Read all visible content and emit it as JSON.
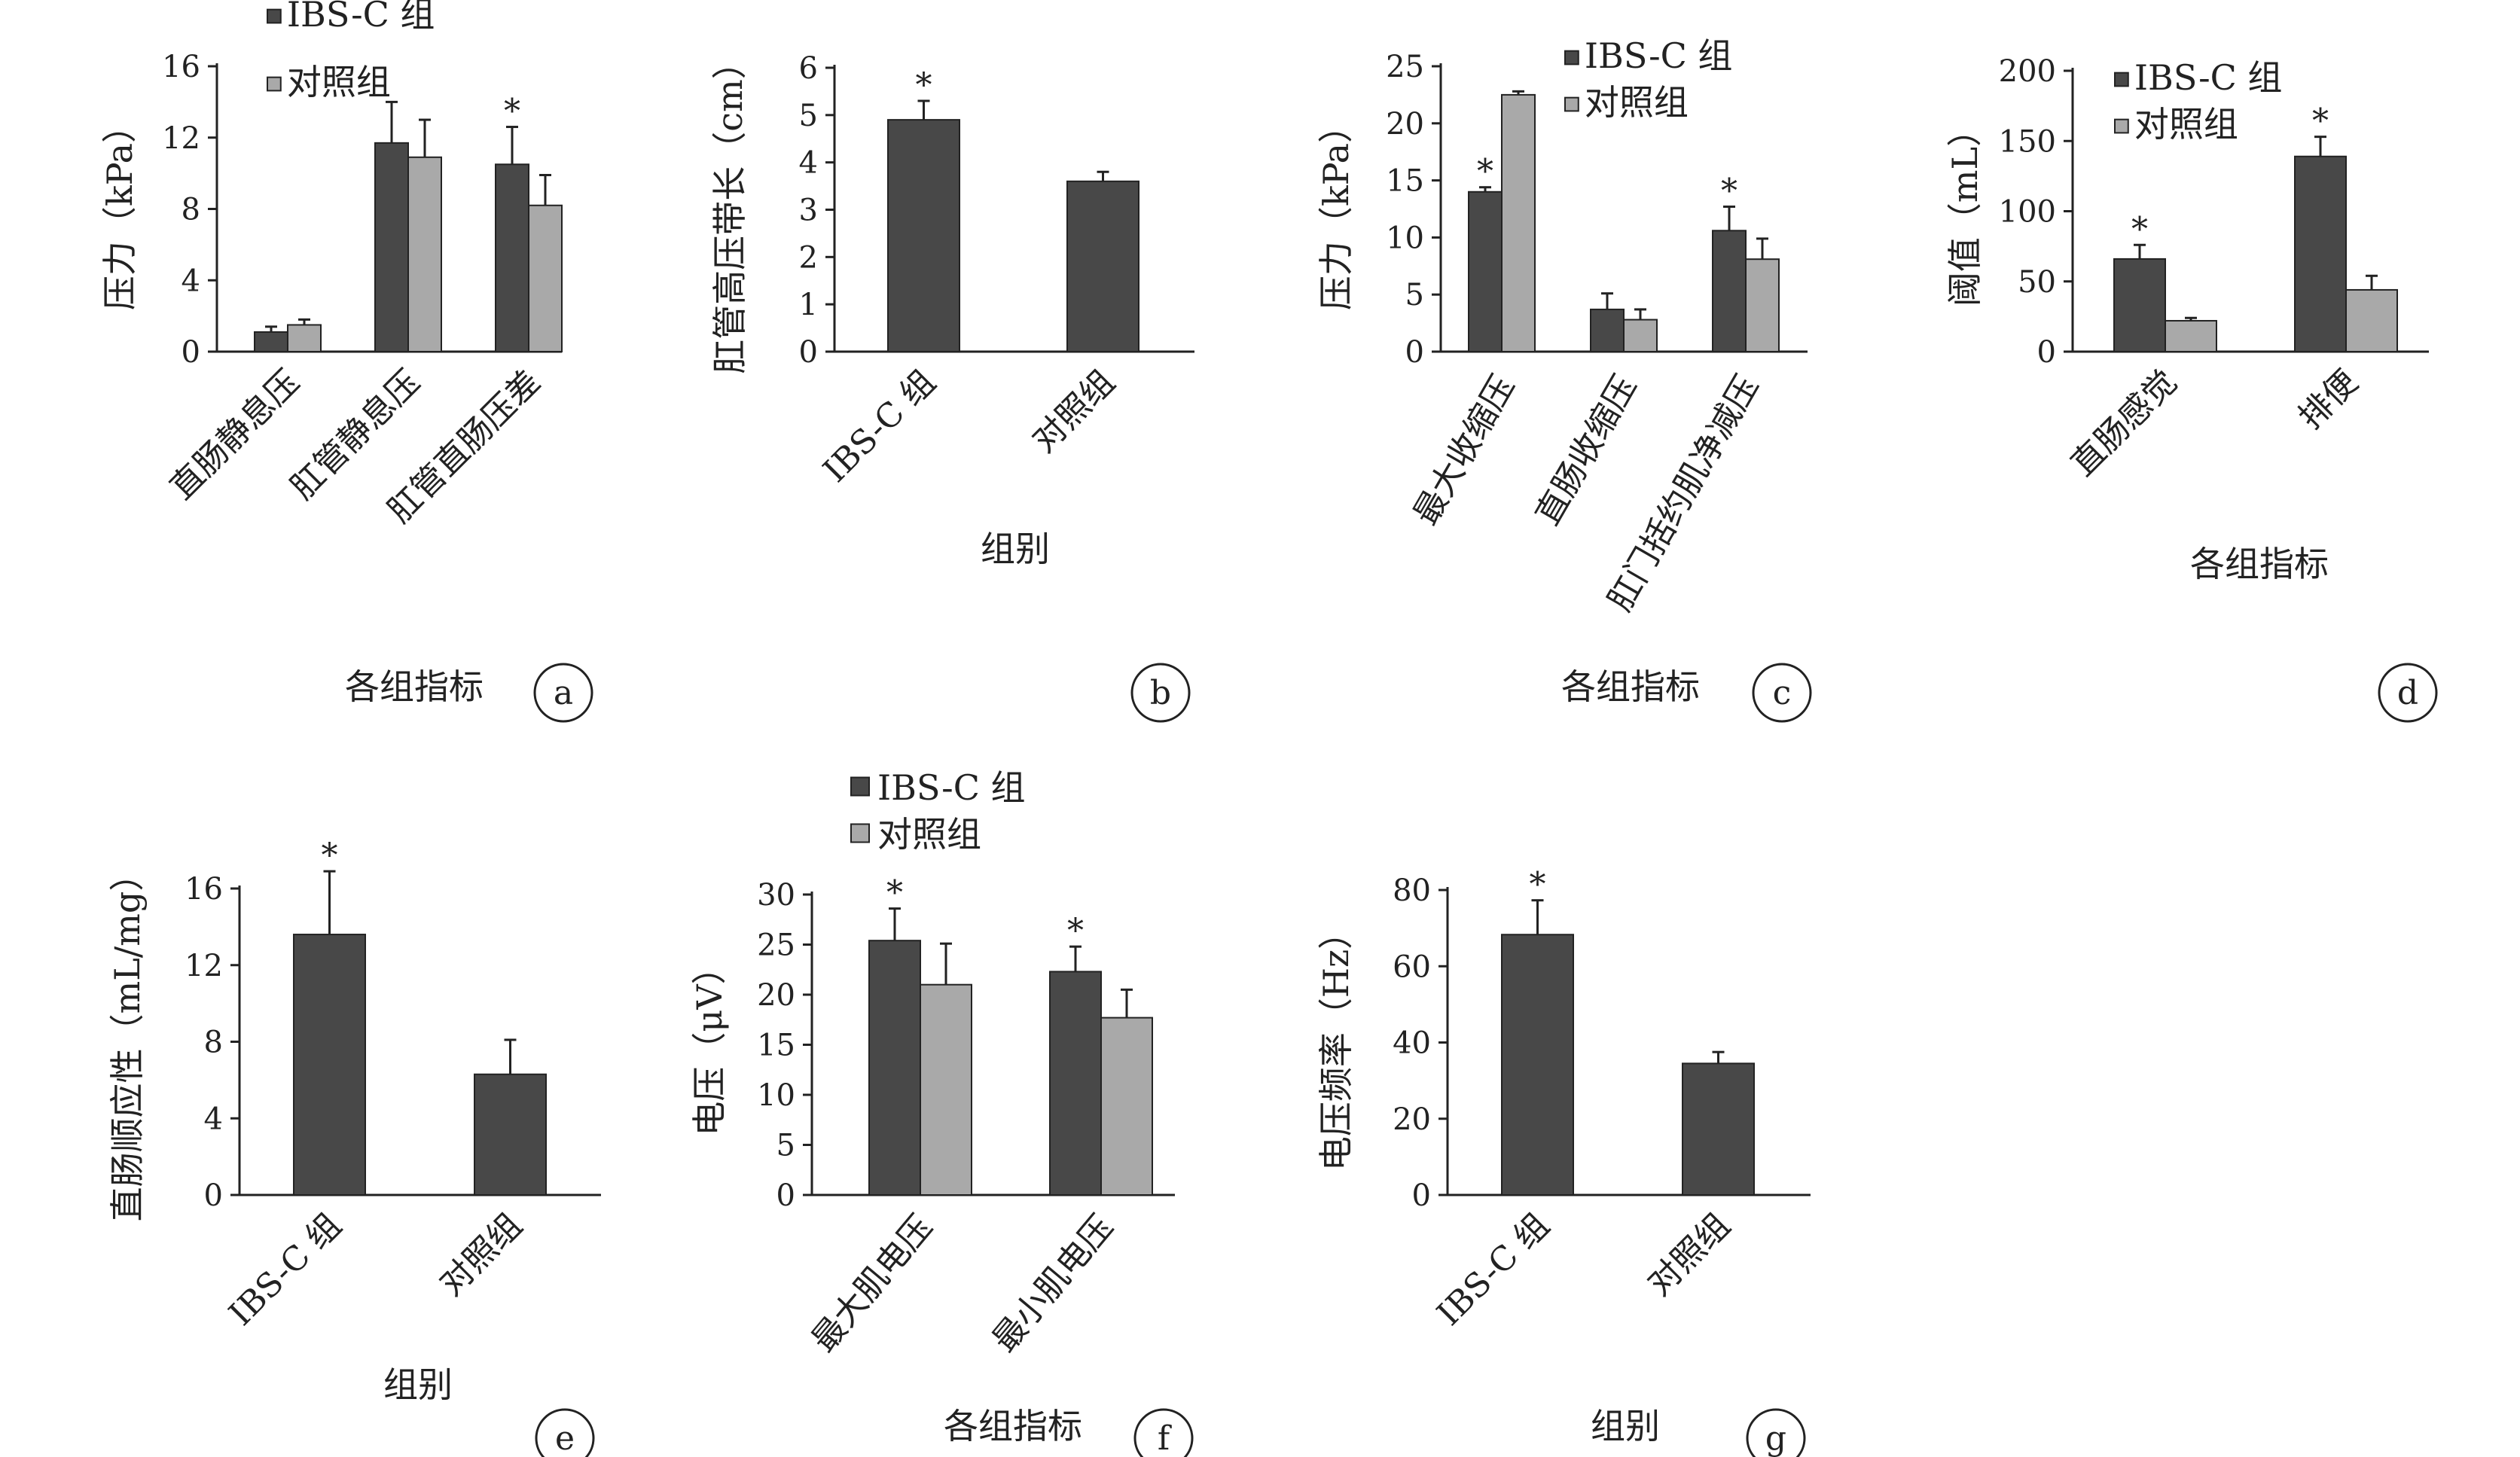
{
  "colors": {
    "ibs": "#484848",
    "control": "#a9a9a9",
    "axis": "#222222"
  },
  "legend": {
    "ibs": "IBS-C 组",
    "control": "对照组"
  },
  "chart_data": [
    {
      "id": "a",
      "type": "bar",
      "panel_label": "a",
      "ylabel": "压力（kPa）",
      "xlabel": "各组指标",
      "ylim": [
        0,
        16
      ],
      "yticks": [
        0,
        4,
        8,
        12,
        16
      ],
      "categories": [
        "直肠静息压",
        "肛管静息压",
        "肛管直肠压差"
      ],
      "series": [
        {
          "name": "IBS-C 组",
          "values": [
            1.1,
            11.7,
            10.5
          ],
          "errors": [
            0.3,
            2.3,
            2.1
          ],
          "significant": [
            false,
            false,
            true
          ]
        },
        {
          "name": "对照组",
          "values": [
            1.5,
            10.9,
            8.2
          ],
          "errors": [
            0.3,
            2.1,
            1.7
          ]
        }
      ],
      "legend_position": "top"
    },
    {
      "id": "b",
      "type": "bar",
      "panel_label": "b",
      "ylabel": "肛管高压带长（cm）",
      "xlabel": "组别",
      "ylim": [
        0,
        6
      ],
      "yticks": [
        0,
        1,
        2,
        3,
        4,
        5,
        6
      ],
      "categories": [
        "IBS-C 组",
        "对照组"
      ],
      "series": [
        {
          "values": [
            4.9,
            3.6
          ],
          "errors": [
            0.4,
            0.2
          ],
          "significant": [
            true,
            false
          ]
        }
      ]
    },
    {
      "id": "c",
      "type": "bar",
      "panel_label": "c",
      "ylabel": "压力（kPa）",
      "xlabel": "各组指标",
      "ylim": [
        0,
        25
      ],
      "yticks": [
        0,
        5,
        10,
        15,
        20,
        25
      ],
      "categories": [
        "最大收缩压",
        "直肠收缩压",
        "肛门括约肌净减压"
      ],
      "series": [
        {
          "name": "IBS-C 组",
          "values": [
            14.0,
            3.7,
            10.6
          ],
          "errors": [
            0.4,
            1.4,
            2.1
          ],
          "significant": [
            true,
            false,
            true
          ]
        },
        {
          "name": "对照组",
          "values": [
            22.5,
            2.8,
            8.1
          ],
          "errors": [
            0.3,
            0.9,
            1.8
          ]
        }
      ],
      "legend_position": "top-right"
    },
    {
      "id": "d",
      "type": "bar",
      "panel_label": "d",
      "ylabel": "阈值（mL）",
      "xlabel": "各组指标",
      "ylim": [
        0,
        200
      ],
      "yticks": [
        0,
        50,
        100,
        150,
        200
      ],
      "categories": [
        "直肠感觉",
        "排便"
      ],
      "series": [
        {
          "name": "IBS-C 组",
          "values": [
            66,
            139
          ],
          "errors": [
            10,
            14
          ],
          "significant": [
            true,
            true
          ]
        },
        {
          "name": "对照组",
          "values": [
            22,
            44
          ],
          "errors": [
            2,
            10
          ]
        }
      ],
      "legend_position": "top-right"
    },
    {
      "id": "e",
      "type": "bar",
      "panel_label": "e",
      "ylabel": "直肠顺应性（mL/mg）",
      "xlabel": "组别",
      "ylim": [
        0,
        16
      ],
      "yticks": [
        0,
        4,
        8,
        12,
        16
      ],
      "categories": [
        "IBS-C 组",
        "对照组"
      ],
      "series": [
        {
          "values": [
            13.6,
            6.3
          ],
          "errors": [
            3.3,
            1.8
          ],
          "significant": [
            true,
            false
          ]
        }
      ]
    },
    {
      "id": "f",
      "type": "bar",
      "panel_label": "f",
      "ylabel": "电压（μV）",
      "xlabel": "各组指标",
      "ylim": [
        0,
        30
      ],
      "yticks": [
        0,
        5,
        10,
        15,
        20,
        25,
        30
      ],
      "categories": [
        "最大肌电压",
        "最小肌电压"
      ],
      "series": [
        {
          "name": "IBS-C 组",
          "values": [
            25.4,
            22.3
          ],
          "errors": [
            3.2,
            2.5
          ],
          "significant": [
            true,
            true
          ]
        },
        {
          "name": "对照组",
          "values": [
            21.0,
            17.7
          ],
          "errors": [
            4.1,
            2.8
          ]
        }
      ],
      "legend_position": "top"
    },
    {
      "id": "g",
      "type": "bar",
      "panel_label": "g",
      "ylabel": "电压频率（Hz）",
      "xlabel": "组别",
      "ylim": [
        0,
        80
      ],
      "yticks": [
        0,
        20,
        40,
        60,
        80
      ],
      "categories": [
        "IBS-C 组",
        "对照组"
      ],
      "series": [
        {
          "values": [
            68.3,
            34.5
          ],
          "errors": [
            9,
            3
          ],
          "significant": [
            true,
            false
          ]
        }
      ]
    }
  ]
}
